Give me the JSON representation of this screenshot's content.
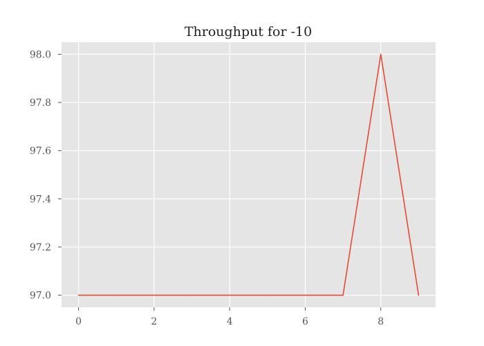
{
  "chart_data": {
    "type": "line",
    "title": "Throughput for -10",
    "xlabel": "",
    "ylabel": "",
    "x": [
      0,
      1,
      2,
      3,
      4,
      5,
      6,
      7,
      8,
      9
    ],
    "series": [
      {
        "values": [
          97.0,
          97.0,
          97.0,
          97.0,
          97.0,
          97.0,
          97.0,
          97.0,
          98.0,
          97.0
        ],
        "color": "#E24A33"
      }
    ],
    "xlim": [
      -0.45,
      9.45
    ],
    "ylim": [
      96.95,
      98.05
    ],
    "xticks": [
      0,
      2,
      4,
      6,
      8
    ],
    "xtick_labels": [
      "0",
      "2",
      "4",
      "6",
      "8"
    ],
    "yticks": [
      97.0,
      97.2,
      97.4,
      97.6,
      97.8,
      98.0
    ],
    "ytick_labels": [
      "97.0",
      "97.2",
      "97.4",
      "97.6",
      "97.8",
      "98.0"
    ],
    "grid": true,
    "style": {
      "plot_background": "#E5E5E5",
      "grid_color": "#FFFFFF",
      "tick_color": "#555555"
    }
  }
}
